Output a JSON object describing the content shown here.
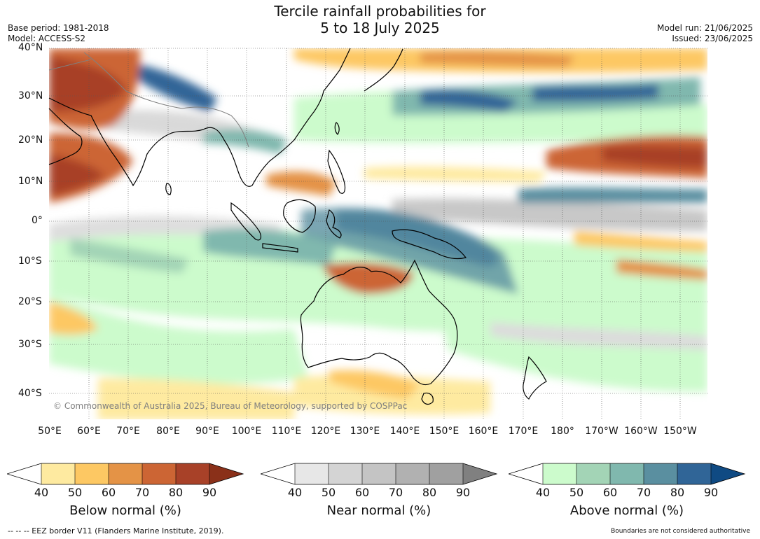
{
  "title": {
    "line1": "Tercile rainfall probabilities for",
    "line2": "5 to 18 July 2025"
  },
  "meta_left": {
    "base_period": "Base period: 1981-2018",
    "model": "Model: ACCESS-S2"
  },
  "meta_right": {
    "model_run": "Model run: 21/06/2025",
    "issued": "Issued: 23/06/2025"
  },
  "map": {
    "lat_labels": [
      "40°N",
      "30°N",
      "20°N",
      "10°N",
      "0°",
      "10°S",
      "20°S",
      "30°S",
      "40°S"
    ],
    "lon_labels": [
      "50°E",
      "60°E",
      "70°E",
      "80°E",
      "90°E",
      "100°E",
      "110°E",
      "120°E",
      "130°E",
      "140°E",
      "150°E",
      "160°E",
      "170°E",
      "180°",
      "170°W",
      "160°W",
      "150°W"
    ],
    "copyright": "© Commonwealth of Australia 2025, Bureau of Meteorology, supported by COSPPac"
  },
  "colorbars": [
    {
      "title": "Below normal (%)",
      "ticks": [
        "40",
        "50",
        "60",
        "70",
        "80",
        "90"
      ],
      "colors": [
        "#ffffff",
        "#feeaa0",
        "#fdc863",
        "#e49346",
        "#cc6534",
        "#a84128",
        "#8a3019"
      ]
    },
    {
      "title": "Near normal (%)",
      "ticks": [
        "40",
        "50",
        "60",
        "70",
        "80",
        "90"
      ],
      "colors": [
        "#ffffff",
        "#e7e7e7",
        "#d4d4d4",
        "#c4c4c4",
        "#b1b1b1",
        "#a0a0a0",
        "#808080"
      ]
    },
    {
      "title": "Above normal (%)",
      "ticks": [
        "40",
        "50",
        "60",
        "70",
        "80",
        "90"
      ],
      "colors": [
        "#ffffff",
        "#ccfbcc",
        "#a3d4b6",
        "#80b8ae",
        "#5a8fa0",
        "#306597",
        "#0f4a83"
      ]
    }
  ],
  "footer": {
    "eez_legend": "--  --  -- EEZ border V11 (Flanders Marine Institute, 2019).",
    "disclaimer": "Boundaries are not considered authoritative"
  }
}
